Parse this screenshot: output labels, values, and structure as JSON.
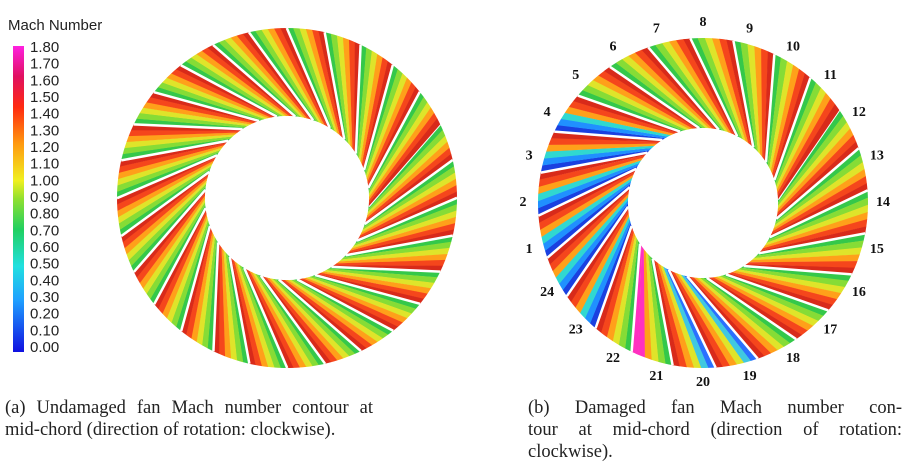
{
  "legend": {
    "title": "Mach Number",
    "labels": [
      "1.80",
      "1.70",
      "1.60",
      "1.50",
      "1.40",
      "1.30",
      "1.20",
      "1.10",
      "1.00",
      "0.90",
      "0.80",
      "0.70",
      "0.60",
      "0.50",
      "0.40",
      "0.30",
      "0.20",
      "0.10",
      "0.00"
    ]
  },
  "panel_b": {
    "blade_labels": [
      "1",
      "2",
      "3",
      "4",
      "5",
      "6",
      "7",
      "8",
      "9",
      "10",
      "11",
      "12",
      "13",
      "14",
      "15",
      "16",
      "17",
      "18",
      "19",
      "20",
      "21",
      "22",
      "23",
      "24"
    ]
  },
  "captions": {
    "a": {
      "lines": [
        "(a) Undamaged fan Mach number contour at",
        "mid-chord (direction of rotation: clockwise)."
      ]
    },
    "b": {
      "lines": [
        "(b) Damaged fan Mach number con-",
        "tour at mid-chord (direction of rotation:",
        "clockwise)."
      ]
    }
  }
}
